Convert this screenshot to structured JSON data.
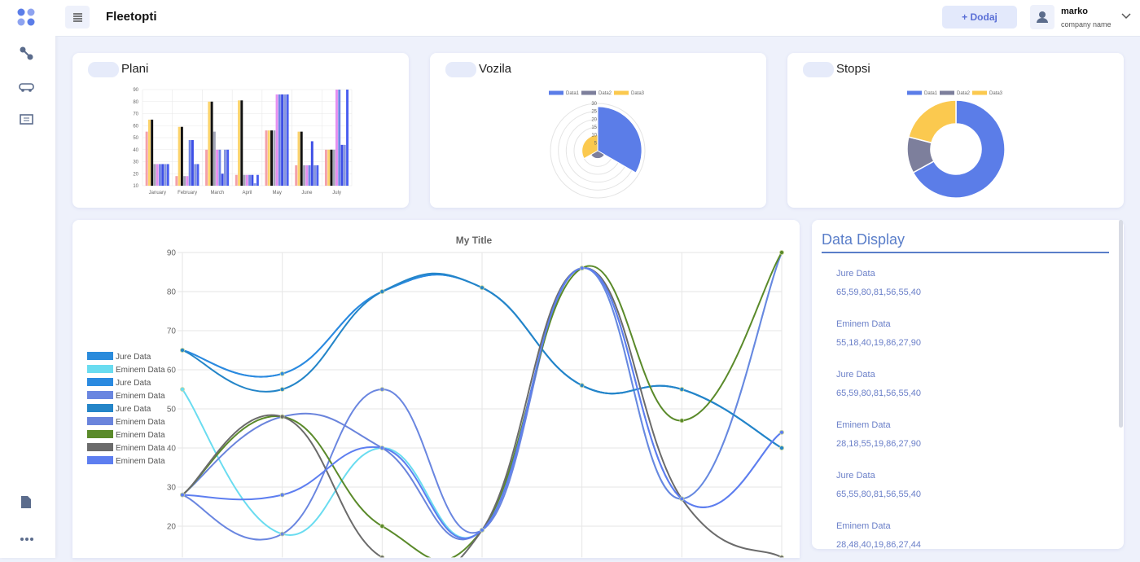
{
  "header": {
    "title": "Fleetopti",
    "button": "+ Dodaj",
    "user": "marko",
    "company": "company name"
  },
  "cards": [
    {
      "title": "Plani"
    },
    {
      "title": "Vozila"
    },
    {
      "title": "Stopsi"
    }
  ],
  "data_display": {
    "title": "Data Display",
    "items": [
      {
        "label": "Jure Data",
        "values": "65,59,80,81,56,55,40"
      },
      {
        "label": "Eminem Data",
        "values": "55,18,40,19,86,27,90"
      },
      {
        "label": "Jure Data",
        "values": "65,59,80,81,56,55,40"
      },
      {
        "label": "Eminem Data",
        "values": "28,18,55,19,86,27,90"
      },
      {
        "label": "Jure Data",
        "values": "65,55,80,81,56,55,40"
      },
      {
        "label": "Eminem Data",
        "values": "28,48,40,19,86,27,44"
      }
    ]
  },
  "chart_data": [
    {
      "type": "bar",
      "categories": [
        "January",
        "February",
        "March",
        "April",
        "May",
        "June",
        "July"
      ],
      "ylim": [
        10,
        90
      ],
      "yticks": [
        10,
        20,
        30,
        40,
        50,
        60,
        70,
        80,
        90
      ],
      "grid": true,
      "series": [
        {
          "color": "#f3a0aa",
          "values": [
            55,
            18,
            40,
            19,
            56,
            27,
            40
          ]
        },
        {
          "color": "#fcd36c",
          "values": [
            65,
            59,
            80,
            81,
            56,
            55,
            40
          ]
        },
        {
          "color": "#111111",
          "values": [
            65,
            59,
            80,
            81,
            56,
            55,
            40
          ]
        },
        {
          "color": "#a3a6b8",
          "values": [
            28,
            18,
            55,
            19,
            56,
            27,
            40
          ]
        },
        {
          "color": "#e58ff0",
          "values": [
            28,
            18,
            40,
            19,
            86,
            27,
            90
          ]
        },
        {
          "color": "#6f86e6",
          "values": [
            28,
            48,
            40,
            19,
            86,
            27,
            90
          ]
        },
        {
          "color": "#3d4fe6",
          "values": [
            28,
            48,
            20,
            19,
            86,
            47,
            44
          ]
        },
        {
          "color": "#8797dc",
          "values": [
            28,
            28,
            40,
            12,
            86,
            27,
            44
          ]
        },
        {
          "color": "#4a5ff0",
          "values": [
            28,
            28,
            40,
            19,
            86,
            27,
            90
          ]
        }
      ]
    },
    {
      "type": "polarArea",
      "categories": [
        "Data1",
        "Data2",
        "Data3"
      ],
      "values": [
        28,
        5,
        10
      ],
      "colors": [
        "#5b7de8",
        "#7d7f9c",
        "#fbc94f"
      ],
      "rlim": [
        0,
        30
      ],
      "rticks": [
        5,
        10,
        15,
        20,
        25,
        30
      ]
    },
    {
      "type": "doughnut",
      "categories": [
        "Data1",
        "Data2",
        "Data3"
      ],
      "values": [
        67,
        12,
        21
      ],
      "colors": [
        "#5b7de8",
        "#7d7f9c",
        "#fbc94f"
      ]
    },
    {
      "type": "line",
      "title": "My Title",
      "categories": [
        null,
        null,
        null,
        null,
        null,
        null,
        null
      ],
      "ylim": [
        12,
        90
      ],
      "yticks": [
        20,
        30,
        40,
        50,
        60,
        70,
        80,
        90
      ],
      "grid": true,
      "legend": "left",
      "series": [
        {
          "name": "Jure Data",
          "color": "#2a8bdc",
          "values": [
            65,
            59,
            80,
            81,
            56,
            55,
            40
          ]
        },
        {
          "name": "Eminem Data",
          "color": "#6adcf0",
          "values": [
            55,
            18,
            40,
            19,
            86,
            27,
            90
          ]
        },
        {
          "name": "Jure Data",
          "color": "#2b8ae0",
          "values": [
            65,
            59,
            80,
            81,
            56,
            55,
            40
          ]
        },
        {
          "name": "Eminem Data",
          "color": "#6a86e0",
          "values": [
            28,
            18,
            55,
            19,
            86,
            27,
            90
          ]
        },
        {
          "name": "Jure Data",
          "color": "#2485c8",
          "values": [
            65,
            55,
            80,
            81,
            56,
            55,
            40
          ]
        },
        {
          "name": "Eminem Data",
          "color": "#6a84dc",
          "values": [
            28,
            48,
            40,
            19,
            86,
            27,
            44
          ]
        },
        {
          "name": "Eminem Data",
          "color": "#5a8a2a",
          "values": [
            28,
            48,
            20,
            19,
            86,
            47,
            90
          ]
        },
        {
          "name": "Eminem Data",
          "color": "#6b6b6b",
          "values": [
            28,
            48,
            12,
            19,
            86,
            27,
            12
          ]
        },
        {
          "name": "Eminem Data",
          "color": "#5d7ef0",
          "values": [
            28,
            28,
            40,
            19,
            86,
            27,
            44
          ]
        }
      ]
    }
  ]
}
